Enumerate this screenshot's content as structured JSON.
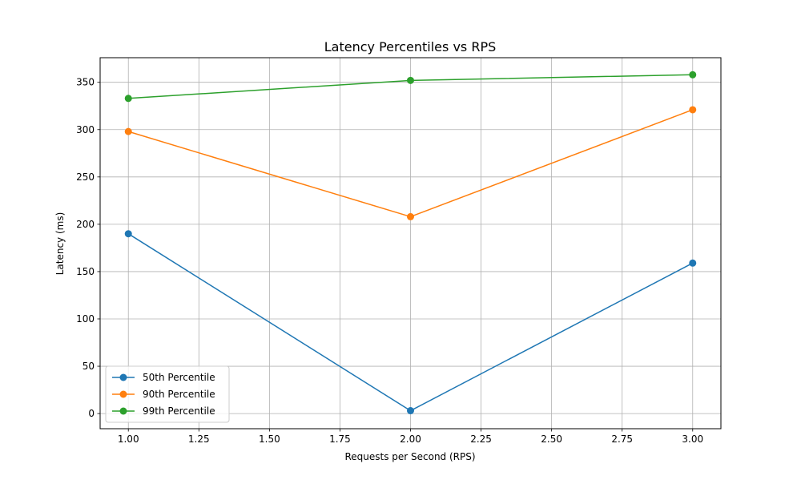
{
  "chart_data": {
    "type": "line",
    "title": "Latency Percentiles vs RPS",
    "xlabel": "Requests per Second (RPS)",
    "ylabel": "Latency (ms)",
    "x": [
      1.0,
      2.0,
      3.0
    ],
    "series": [
      {
        "name": "50th Percentile",
        "values": [
          190,
          3,
          159
        ],
        "color": "#1f77b4"
      },
      {
        "name": "90th Percentile",
        "values": [
          298,
          208,
          321
        ],
        "color": "#ff7f0e"
      },
      {
        "name": "99th Percentile",
        "values": [
          333,
          352,
          358
        ],
        "color": "#2ca02c"
      }
    ],
    "xlim": [
      0.9,
      3.1
    ],
    "ylim": [
      -16,
      376
    ],
    "xticks": [
      1.0,
      1.25,
      1.5,
      1.75,
      2.0,
      2.25,
      2.5,
      2.75,
      3.0
    ],
    "xtick_labels": [
      "1.00",
      "1.25",
      "1.50",
      "1.75",
      "2.00",
      "2.25",
      "2.50",
      "2.75",
      "3.00"
    ],
    "yticks": [
      0,
      50,
      100,
      150,
      200,
      250,
      300,
      350
    ],
    "ytick_labels": [
      "0",
      "50",
      "100",
      "150",
      "200",
      "250",
      "300",
      "350"
    ],
    "grid": true,
    "legend_position": "lower-left",
    "marker": "circle"
  }
}
